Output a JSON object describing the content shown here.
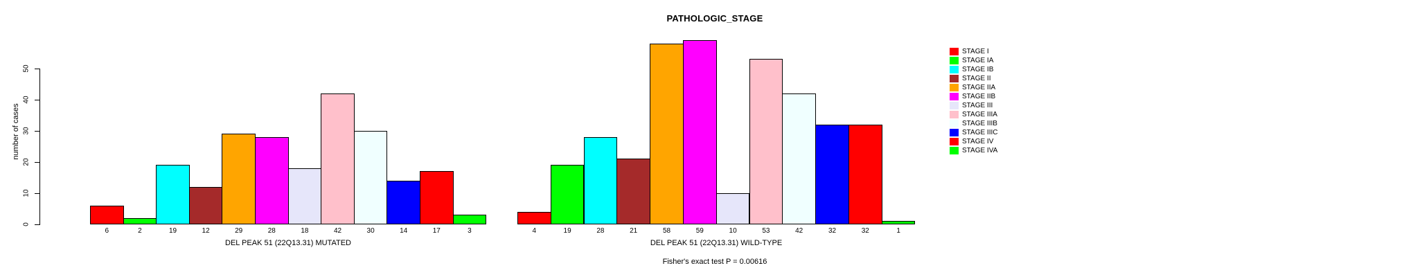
{
  "chart_data": {
    "type": "bar",
    "title": "PATHOLOGIC_STAGE",
    "ylabel": "number of cases",
    "yticks": [
      0,
      10,
      20,
      30,
      40,
      50
    ],
    "ylim": [
      0,
      59
    ],
    "grid": false,
    "legend_position": "right",
    "legend": [
      {
        "label": "STAGE I",
        "color": "#FF0000"
      },
      {
        "label": "STAGE IA",
        "color": "#00FF00"
      },
      {
        "label": "STAGE IB",
        "color": "#00FFFF"
      },
      {
        "label": "STAGE II",
        "color": "#A52A2A"
      },
      {
        "label": "STAGE IIA",
        "color": "#FFA500"
      },
      {
        "label": "STAGE IIB",
        "color": "#FF00FF"
      },
      {
        "label": "STAGE III",
        "color": "#E6E6FA"
      },
      {
        "label": "STAGE IIIA",
        "color": "#FFC0CB"
      },
      {
        "label": "STAGE IIIB",
        "color": "#F0FFFF"
      },
      {
        "label": "STAGE IIIC",
        "color": "#0000FF"
      },
      {
        "label": "STAGE IV",
        "color": "#FF0000"
      },
      {
        "label": "STAGE IVA",
        "color": "#00FF00"
      }
    ],
    "groups": [
      {
        "xlabel": "DEL PEAK 51 (22Q13.31) MUTATED",
        "values": [
          6,
          2,
          19,
          12,
          29,
          28,
          18,
          42,
          30,
          14,
          17,
          3
        ]
      },
      {
        "xlabel": "DEL PEAK 51 (22Q13.31) WILD-TYPE",
        "values": [
          4,
          19,
          28,
          21,
          58,
          59,
          10,
          53,
          42,
          32,
          32,
          1
        ]
      }
    ],
    "annotation": "Fisher's exact test P = 0.00616"
  }
}
